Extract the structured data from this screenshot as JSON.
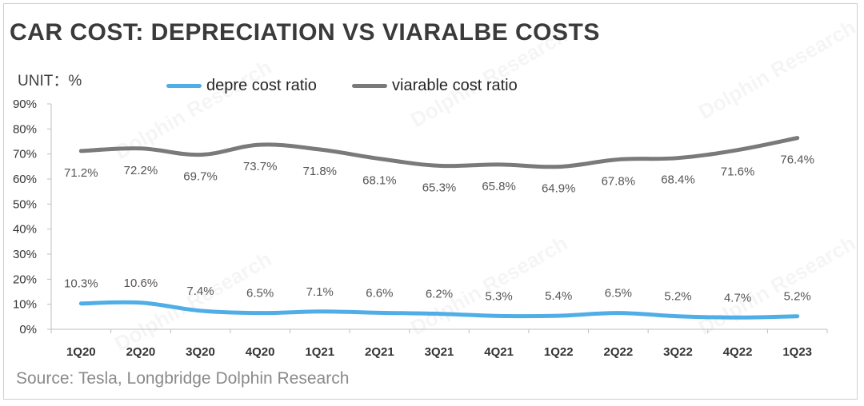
{
  "title": "CAR COST: DEPRECIATION VS VIARALBE COSTS",
  "unit_label": "UNIT：%",
  "source": "Source: Tesla, Longbridge Dolphin Research",
  "watermark": "Dolphin Research",
  "colors": {
    "depre": "#4faee6",
    "variable": "#7a7a7a"
  },
  "chart_data": {
    "type": "line",
    "title": "CAR COST: DEPRECIATION VS VIARALBE COSTS",
    "ylabel": "UNIT：%",
    "categories": [
      "1Q20",
      "2Q20",
      "3Q20",
      "4Q20",
      "1Q21",
      "2Q21",
      "3Q21",
      "4Q21",
      "1Q22",
      "2Q22",
      "3Q22",
      "4Q22",
      "1Q23"
    ],
    "ylim": [
      0,
      90
    ],
    "yticks": [
      "0%",
      "10%",
      "20%",
      "30%",
      "40%",
      "50%",
      "60%",
      "70%",
      "80%",
      "90%"
    ],
    "legend_position": "top",
    "grid": false,
    "series": [
      {
        "name": "depre cost ratio",
        "color": "#4faee6",
        "values": [
          10.3,
          10.6,
          7.4,
          6.5,
          7.1,
          6.6,
          6.2,
          5.3,
          5.4,
          6.5,
          5.2,
          4.7,
          5.2
        ],
        "labels": [
          "10.3%",
          "10.6%",
          "7.4%",
          "6.5%",
          "7.1%",
          "6.6%",
          "6.2%",
          "5.3%",
          "5.4%",
          "6.5%",
          "5.2%",
          "4.7%",
          "5.2%"
        ]
      },
      {
        "name": "viarable cost ratio",
        "color": "#7a7a7a",
        "values": [
          71.2,
          72.2,
          69.7,
          73.7,
          71.8,
          68.1,
          65.3,
          65.8,
          64.9,
          67.8,
          68.4,
          71.6,
          76.4
        ],
        "labels": [
          "71.2%",
          "72.2%",
          "69.7%",
          "73.7%",
          "71.8%",
          "68.1%",
          "65.3%",
          "65.8%",
          "64.9%",
          "67.8%",
          "68.4%",
          "71.6%",
          "76.4%"
        ]
      }
    ]
  }
}
